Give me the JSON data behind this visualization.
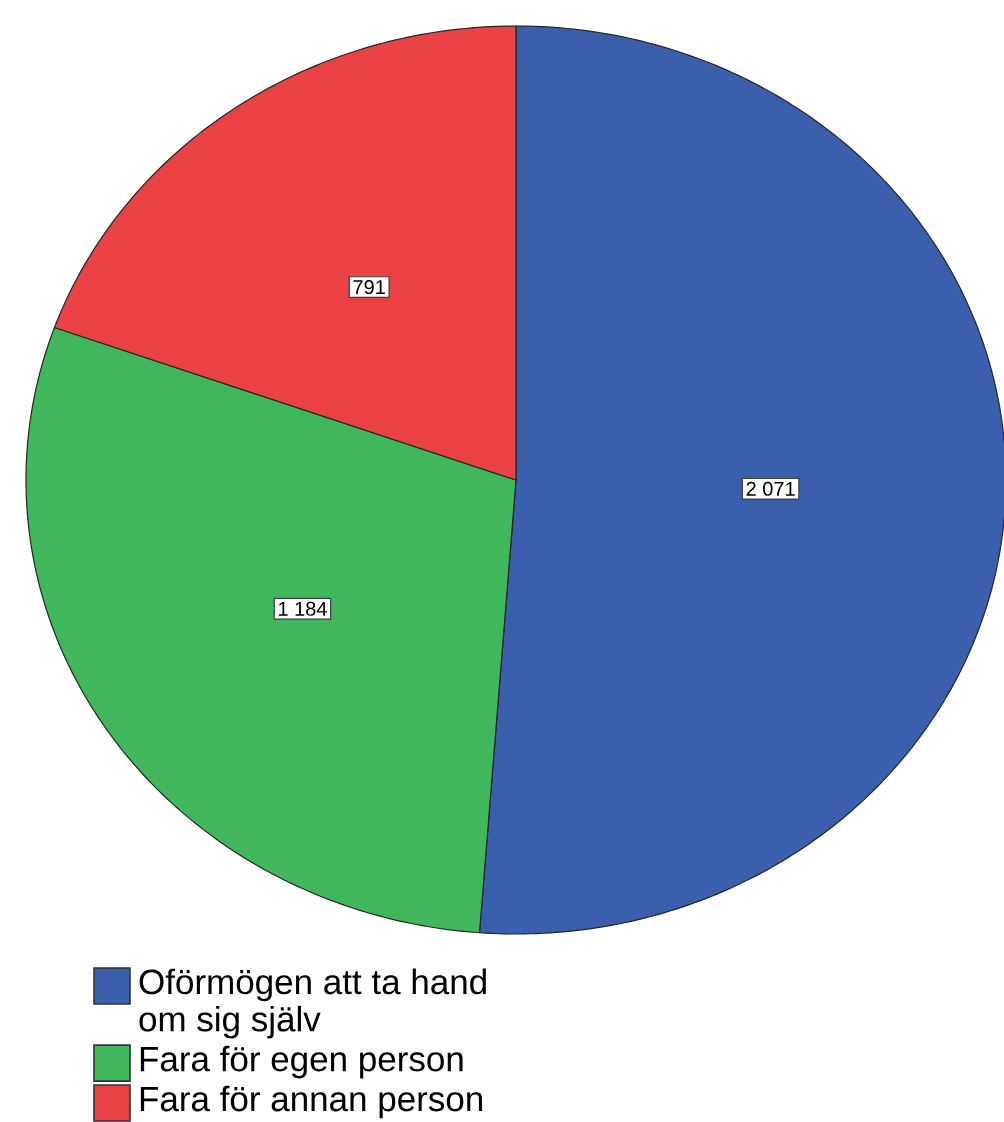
{
  "chart_data": {
    "type": "pie",
    "categories": [
      "Oförmögen att ta hand om sig själv",
      "Fara för egen person",
      "Fara för annan person"
    ],
    "values": [
      2071,
      1184,
      791
    ],
    "colors": [
      "#3a5fad",
      "#41b75b",
      "#ea4145"
    ],
    "value_labels": [
      "2 071",
      "1 184",
      "791"
    ],
    "legend": "bottom left"
  }
}
